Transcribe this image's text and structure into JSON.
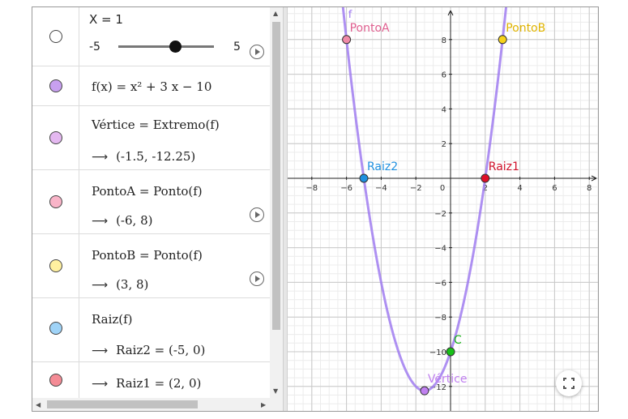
{
  "slider": {
    "label": "X = 1",
    "min": "-5",
    "max": "5",
    "fraction": 0.6
  },
  "rows": [
    {
      "id": "func",
      "def": "f(x) = x² + 3 x − 10",
      "color": "#c8a0f0"
    },
    {
      "id": "vertice",
      "def": "Vértice = Extremo(f)",
      "value": "(-1.5, -12.25)",
      "color": "#e4b8f0"
    },
    {
      "id": "pontoa",
      "def": "PontoA = Ponto(f)",
      "value": "(-6, 8)",
      "color": "#f9b4c8"
    },
    {
      "id": "pontob",
      "def": "PontoB = Ponto(f)",
      "value": "(3, 8)",
      "color": "#fff0a0"
    },
    {
      "id": "raiz",
      "def": "Raiz(f)",
      "value": "Raiz2 = (-5, 0)",
      "color": "#9fd3f7"
    },
    {
      "id": "raiz1",
      "value": "Raiz1 = (2, 0)",
      "color": "#f48b95"
    }
  ],
  "graph": {
    "function_label": "f",
    "x_ticks": [
      "−8",
      "−6",
      "−4",
      "−2",
      "0",
      "2",
      "4",
      "6",
      "8"
    ],
    "y_ticks": [
      "8",
      "6",
      "4",
      "2",
      "−2",
      "−4",
      "−6",
      "−8",
      "−10",
      "−12"
    ],
    "points": [
      {
        "label": "PontoA",
        "x": -6,
        "y": 8,
        "fill": "#f08aa8",
        "label_color": "#e06090"
      },
      {
        "label": "PontoB",
        "x": 3,
        "y": 8,
        "fill": "#f7d21a",
        "label_color": "#e0b400"
      },
      {
        "label": "Raiz2",
        "x": -5,
        "y": 0,
        "fill": "#1e90e0",
        "label_color": "#1e90e0"
      },
      {
        "label": "Raiz1",
        "x": 2,
        "y": 0,
        "fill": "#e0102a",
        "label_color": "#d0102a"
      },
      {
        "label": "C",
        "x": 0,
        "y": -10,
        "fill": "#18c018",
        "label_color": "#18b018"
      },
      {
        "label": "Vértice",
        "x": -1.5,
        "y": -12.25,
        "fill": "#c080f0",
        "label_color": "#c080f0"
      }
    ],
    "curve_color": "#a07cf0"
  },
  "icons": {
    "play": "play-icon",
    "fullscreen": "fullscreen-icon",
    "scroll_up": "▲",
    "scroll_down": "▼",
    "scroll_left": "◀",
    "scroll_right": "▶"
  }
}
